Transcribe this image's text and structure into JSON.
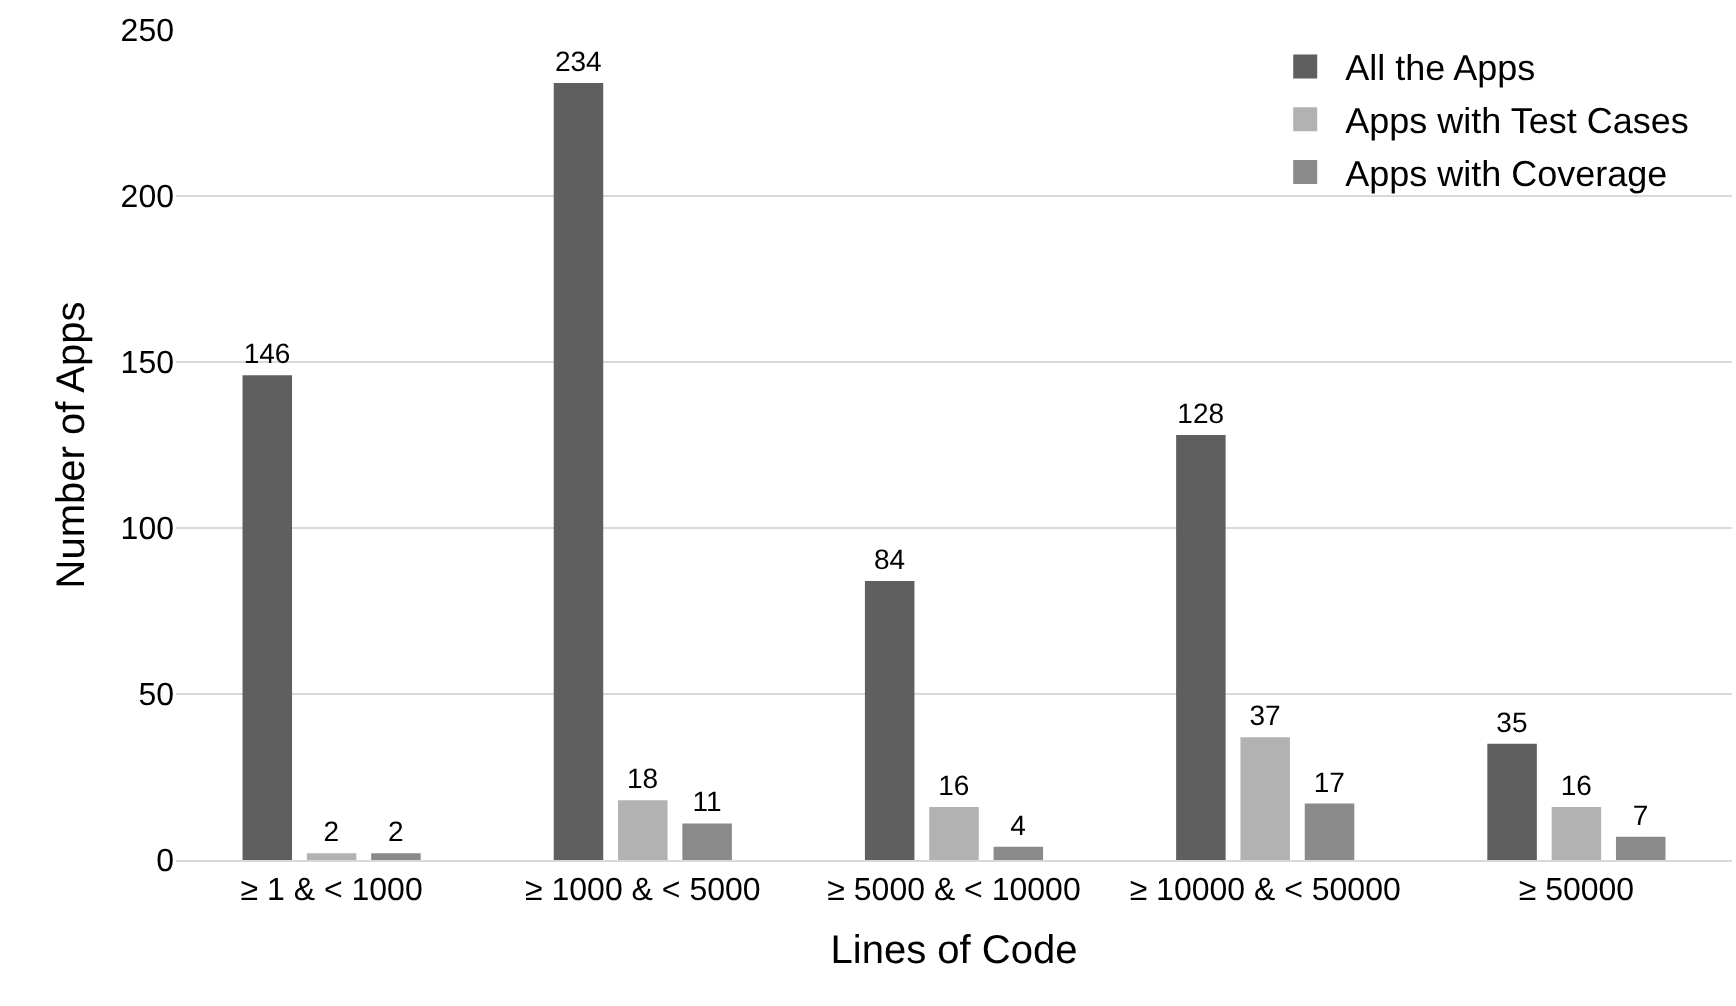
{
  "chart_data": {
    "type": "bar",
    "xlabel": "Lines of Code",
    "ylabel": "Number of Apps",
    "categories": [
      "≥ 1 & < 1000",
      "≥ 1000 & < 5000",
      "≥ 5000 & < 10000",
      "≥ 10000 & < 50000",
      "≥ 50000"
    ],
    "series": [
      {
        "name": "All the Apps",
        "color": "#5f5f5f",
        "values": [
          146,
          234,
          84,
          128,
          35
        ]
      },
      {
        "name": "Apps with Test Cases",
        "color": "#b2b2b2",
        "values": [
          2,
          18,
          16,
          37,
          16
        ]
      },
      {
        "name": "Apps with Coverage",
        "color": "#8a8a8a",
        "values": [
          2,
          11,
          4,
          17,
          7
        ]
      }
    ],
    "ylim": [
      0,
      250
    ],
    "yticks": [
      0,
      50,
      100,
      150,
      200,
      250
    ],
    "grid": "y",
    "legend": "top right",
    "data_labels": true
  }
}
